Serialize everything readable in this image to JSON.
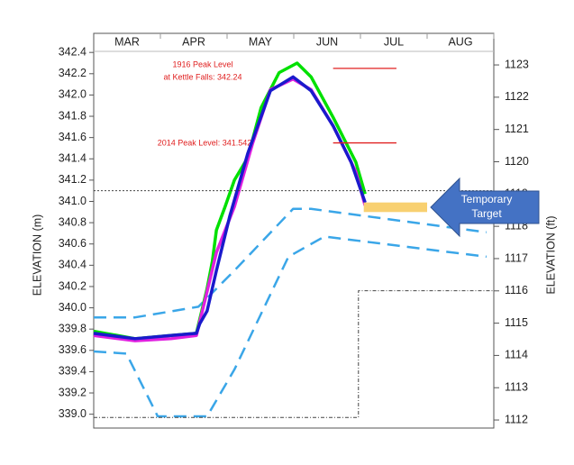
{
  "chart_data": {
    "type": "line",
    "ylabel": "ELEVATION (m)",
    "y2label": "ELEVATION (ft)",
    "xlim": [
      0,
      6
    ],
    "xticks": [
      {
        "value": 0.5,
        "label": "MAR"
      },
      {
        "value": 1.5,
        "label": "APR"
      },
      {
        "value": 2.5,
        "label": "MAY"
      },
      {
        "value": 3.5,
        "label": "JUN"
      },
      {
        "value": 4.5,
        "label": "JUL"
      },
      {
        "value": 5.5,
        "label": "AUG"
      }
    ],
    "ylim": [
      338.87,
      342.41
    ],
    "yticks": [
      {
        "value": 339.0,
        "label": "339.0"
      },
      339.2,
      339.4,
      339.6,
      339.8,
      {
        "value": 340.0,
        "label": "340.0"
      },
      340.2,
      340.4,
      340.6,
      340.8,
      {
        "value": 341.0,
        "label": "341.0"
      },
      341.2,
      341.4,
      341.6,
      341.8,
      {
        "value": 342.0,
        "label": "342.0"
      },
      342.2,
      342.4
    ],
    "y2lim": [
      1111.75,
      1123.42
    ],
    "y2ticks": [
      1112,
      1113,
      1114,
      1115,
      1116,
      1117,
      1118,
      1119,
      1120,
      1121,
      1122,
      1123
    ],
    "series": [
      {
        "color": "#3aa6e8",
        "width": 2.5,
        "dash": "14 8",
        "x": [
          0,
          0.62,
          1.57,
          2.11,
          2.99,
          3.26,
          5.89
        ],
        "values": [
          339.91,
          339.91,
          340.01,
          340.35,
          340.93,
          340.93,
          340.71
        ]
      },
      {
        "color": "#3aa6e8",
        "width": 2.5,
        "dash": "14 8",
        "x": [
          0,
          0.49,
          0.96,
          1.7,
          2.11,
          2.92,
          3.46,
          5.89
        ],
        "values": [
          339.59,
          339.57,
          338.98,
          338.98,
          339.42,
          340.48,
          340.67,
          340.48
        ]
      },
      {
        "color": "#00e000",
        "width": 3.5,
        "x": [
          0,
          0.62,
          1.16,
          1.54,
          1.7,
          1.78,
          1.84,
          1.97,
          2.11,
          2.31,
          2.51,
          2.78,
          3.05,
          3.26,
          3.59,
          3.93,
          4.07
        ],
        "values": [
          339.78,
          339.71,
          339.74,
          339.76,
          340.18,
          340.44,
          340.73,
          340.95,
          341.2,
          341.41,
          341.88,
          342.21,
          342.3,
          342.17,
          341.79,
          341.37,
          341.07
        ]
      },
      {
        "color": "#e020e0",
        "width": 3.5,
        "x": [
          0,
          0.62,
          1.16,
          1.54,
          1.68,
          1.84,
          2.11,
          2.38,
          2.65,
          2.99,
          3.26,
          3.59,
          3.93,
          4.07
        ],
        "values": [
          339.74,
          339.69,
          339.71,
          339.74,
          340.1,
          340.52,
          340.95,
          341.54,
          342.05,
          342.15,
          342.05,
          341.71,
          341.28,
          340.96
        ]
      },
      {
        "color": "#1a1acc",
        "width": 3.5,
        "x": [
          0,
          0.62,
          1.16,
          1.54,
          1.59,
          1.7,
          1.84,
          2.04,
          2.31,
          2.65,
          2.99,
          3.26,
          3.59,
          3.86,
          4.07
        ],
        "values": [
          339.76,
          339.71,
          339.74,
          339.76,
          339.85,
          339.97,
          340.35,
          340.86,
          341.45,
          342.04,
          342.17,
          342.04,
          341.71,
          341.37,
          340.99
        ]
      },
      {
        "color": "#444444",
        "width": 1,
        "dash": "2 2",
        "x": [
          0,
          6
        ],
        "values": [
          341.1,
          341.1
        ]
      },
      {
        "color": "#444444",
        "width": 1,
        "dash": "4 2 1 2",
        "x": [
          0,
          3.97,
          3.97,
          6
        ],
        "values": [
          338.97,
          338.97,
          340.16,
          340.16
        ]
      },
      {
        "color": "#e02020",
        "width": 1.3,
        "x": [
          3.59,
          4.54
        ],
        "values": [
          342.25,
          342.25
        ]
      },
      {
        "color": "#e02020",
        "width": 1.3,
        "x": [
          3.59,
          4.54
        ],
        "values": [
          341.55,
          341.55
        ]
      }
    ],
    "target": {
      "color": "#f8d070",
      "x": [
        4.05,
        5.0
      ],
      "values": [
        340.99,
        340.9
      ]
    },
    "target_label": [
      "Temporary",
      "Target"
    ],
    "annotations": [
      "1916 Peak Level",
      "at Kettle Falls: 342.24",
      "2014 Peak Level: 341.542"
    ]
  }
}
